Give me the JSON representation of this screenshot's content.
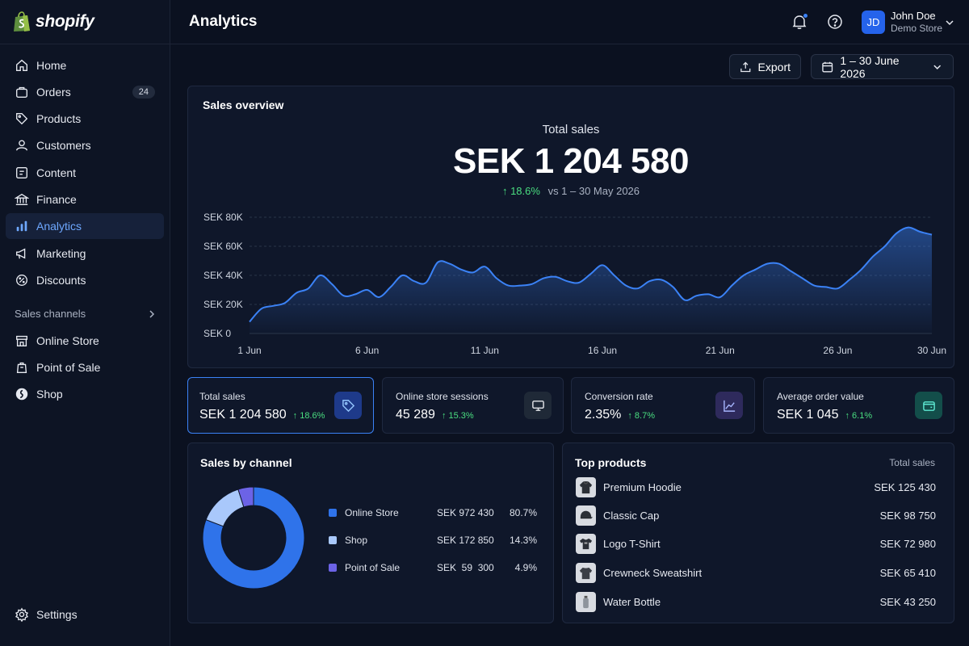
{
  "brand": {
    "name": "shopify"
  },
  "sidebar": {
    "items": [
      {
        "label": "Home",
        "icon": "home-icon"
      },
      {
        "label": "Orders",
        "icon": "orders-icon",
        "badge": "24"
      },
      {
        "label": "Products",
        "icon": "tag-icon"
      },
      {
        "label": "Customers",
        "icon": "person-icon"
      },
      {
        "label": "Content",
        "icon": "content-icon"
      },
      {
        "label": "Finance",
        "icon": "bank-icon"
      },
      {
        "label": "Analytics",
        "icon": "bar-chart-icon",
        "active": true
      },
      {
        "label": "Marketing",
        "icon": "megaphone-icon"
      },
      {
        "label": "Discounts",
        "icon": "discount-icon"
      }
    ],
    "sales_channels_label": "Sales channels",
    "channels": [
      {
        "label": "Online Store",
        "icon": "store-icon"
      },
      {
        "label": "Point of Sale",
        "icon": "pos-icon"
      },
      {
        "label": "Shop",
        "icon": "shop-icon"
      }
    ],
    "settings_label": "Settings"
  },
  "header": {
    "title": "Analytics",
    "user": {
      "initials": "JD",
      "name": "John Doe",
      "store": "Demo Store"
    }
  },
  "toolbar": {
    "export_label": "Export",
    "date_range": "1 – 30 June 2026"
  },
  "overview": {
    "title": "Sales overview",
    "total_label": "Total sales",
    "total_value": "SEK 1 204 580",
    "change": "↑ 18.6%",
    "compare": "vs 1 – 30 May 2026"
  },
  "chart_data": {
    "type": "area",
    "y_tick_labels": [
      "SEK 80K",
      "SEK 60K",
      "SEK 40K",
      "SEK 20K",
      "SEK 0"
    ],
    "ylim": [
      0,
      80000
    ],
    "x_tick_labels": [
      "1 Jun",
      "6 Jun",
      "11 Jun",
      "16 Jun",
      "21 Jun",
      "26 Jun",
      "30 Jun"
    ],
    "x_tick_days": [
      1,
      6,
      11,
      16,
      21,
      26,
      30
    ],
    "xlim": [
      1,
      30
    ],
    "x": [
      1,
      1.5,
      2,
      2.5,
      3,
      3.5,
      4,
      4.5,
      5,
      5.5,
      6,
      6.5,
      7,
      7.5,
      8,
      8.5,
      9,
      9.5,
      10,
      10.5,
      11,
      11.5,
      12,
      12.5,
      13,
      13.5,
      14,
      14.5,
      15,
      15.5,
      16,
      16.5,
      17,
      17.5,
      18,
      18.5,
      19,
      19.5,
      20,
      20.5,
      21,
      21.5,
      22,
      22.5,
      23,
      23.5,
      24,
      24.5,
      25,
      25.5,
      26,
      26.5,
      27,
      27.5,
      28,
      28.5,
      29,
      29.5,
      30
    ],
    "y": [
      8000,
      17000,
      19000,
      21000,
      28000,
      31000,
      40000,
      34000,
      26000,
      27000,
      30000,
      25000,
      32000,
      40000,
      36000,
      35000,
      49000,
      48000,
      44000,
      42000,
      46000,
      38000,
      33000,
      33000,
      34000,
      38000,
      39000,
      36000,
      35000,
      41000,
      47000,
      40000,
      33000,
      31000,
      36000,
      37000,
      32000,
      23000,
      26000,
      27000,
      25000,
      33000,
      40000,
      44000,
      48000,
      48000,
      43000,
      38000,
      33000,
      32000,
      31000,
      37000,
      44000,
      53000,
      60000,
      69000,
      73000,
      70000,
      68000
    ],
    "grid": true,
    "color": "#3b82f6"
  },
  "kpis": [
    {
      "label": "Total sales",
      "value": "SEK 1 204 580",
      "change": "↑ 18.6%",
      "icon": "tag-icon",
      "icon_bg": "#1e3a8a",
      "icon_color": "#93c5fd",
      "selected": true
    },
    {
      "label": "Online store sessions",
      "value": "45 289",
      "change": "↑ 15.3%",
      "icon": "monitor-icon",
      "icon_bg": "#1f2937",
      "icon_color": "#e5e7eb"
    },
    {
      "label": "Conversion rate",
      "value": "2.35%",
      "change": "↑ 8.7%",
      "icon": "trend-icon",
      "icon_bg": "#2e2a5c",
      "icon_color": "#a5b4fc"
    },
    {
      "label": "Average order value",
      "value": "SEK 1 045",
      "change": "↑ 6.1%",
      "icon": "wallet-icon",
      "icon_bg": "#134e4a",
      "icon_color": "#5eead4"
    }
  ],
  "channels": {
    "title": "Sales by channel",
    "rows": [
      {
        "name": "Online Store",
        "amount": "SEK 972 430",
        "pct": "80.7%",
        "value": 80.7,
        "color": "#2f73ea"
      },
      {
        "name": "Shop",
        "amount": "SEK 172 850",
        "pct": "14.3%",
        "value": 14.3,
        "color": "#a9c8fb"
      },
      {
        "name": "Point of Sale",
        "amount": "SEK  59  300",
        "pct": "4.9%",
        "value": 4.9,
        "color": "#6c63e6"
      }
    ]
  },
  "top_products": {
    "title": "Top products",
    "column": "Total sales",
    "rows": [
      {
        "name": "Premium Hoodie",
        "sales": "SEK 125 430",
        "icon": "hoodie-icon"
      },
      {
        "name": "Classic Cap",
        "sales": "SEK 98 750",
        "icon": "cap-icon"
      },
      {
        "name": "Logo T-Shirt",
        "sales": "SEK 72 980",
        "icon": "tshirt-icon"
      },
      {
        "name": "Crewneck Sweatshirt",
        "sales": "SEK 65 410",
        "icon": "sweatshirt-icon"
      },
      {
        "name": "Water Bottle",
        "sales": "SEK 43 250",
        "icon": "bottle-icon"
      }
    ]
  }
}
